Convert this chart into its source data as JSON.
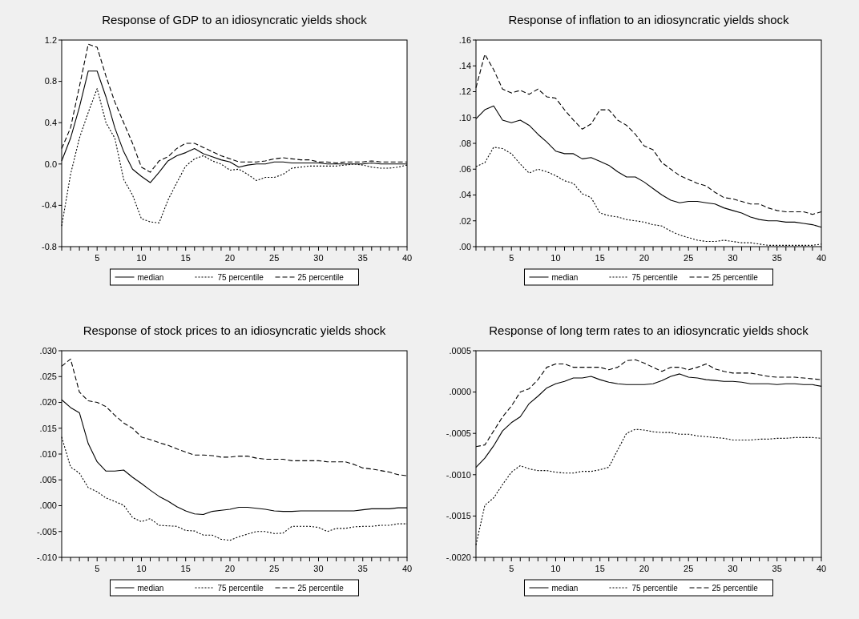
{
  "chart_data": [
    {
      "type": "line",
      "title": "Response of GDP to an idiosyncratic yields shock",
      "legend": "bottom",
      "xlim": [
        1,
        40
      ],
      "xticks": [
        {
          "value": 1,
          "label": null
        },
        {
          "value": 2,
          "label": null
        },
        {
          "value": 3,
          "label": null
        },
        {
          "value": 4,
          "label": null
        },
        5,
        {
          "value": 6,
          "label": null
        },
        {
          "value": 7,
          "label": null
        },
        {
          "value": 8,
          "label": null
        },
        {
          "value": 9,
          "label": null
        },
        10,
        {
          "value": 11,
          "label": null
        },
        {
          "value": 12,
          "label": null
        },
        {
          "value": 13,
          "label": null
        },
        {
          "value": 14,
          "label": null
        },
        15,
        {
          "value": 16,
          "label": null
        },
        {
          "value": 17,
          "label": null
        },
        {
          "value": 18,
          "label": null
        },
        {
          "value": 19,
          "label": null
        },
        20,
        {
          "value": 21,
          "label": null
        },
        {
          "value": 22,
          "label": null
        },
        {
          "value": 23,
          "label": null
        },
        {
          "value": 24,
          "label": null
        },
        25,
        {
          "value": 26,
          "label": null
        },
        {
          "value": 27,
          "label": null
        },
        {
          "value": 28,
          "label": null
        },
        {
          "value": 29,
          "label": null
        },
        30,
        {
          "value": 31,
          "label": null
        },
        {
          "value": 32,
          "label": null
        },
        {
          "value": 33,
          "label": null
        },
        {
          "value": 34,
          "label": null
        },
        35,
        {
          "value": 36,
          "label": null
        },
        {
          "value": 37,
          "label": null
        },
        {
          "value": 38,
          "label": null
        },
        {
          "value": 39,
          "label": null
        },
        40
      ],
      "ylim": [
        -0.8,
        1.2
      ],
      "yticks": [
        {
          "value": -0.8,
          "label": "-0.8"
        },
        {
          "value": -0.4,
          "label": "-0.4"
        },
        {
          "value": 0,
          "label": "0.0"
        },
        0.4,
        0.8,
        1.2
      ],
      "x": [
        1,
        2,
        3,
        4,
        5,
        6,
        7,
        8,
        9,
        10,
        11,
        12,
        13,
        14,
        15,
        16,
        17,
        18,
        19,
        20,
        21,
        22,
        23,
        24,
        25,
        26,
        27,
        28,
        29,
        30,
        31,
        32,
        33,
        34,
        35,
        36,
        37,
        38,
        39,
        40
      ],
      "series": [
        {
          "name": "median",
          "color": "#000000",
          "line_style": "solid",
          "values": [
            0.03,
            0.25,
            0.55,
            0.9,
            0.9,
            0.65,
            0.35,
            0.12,
            -0.05,
            -0.12,
            -0.18,
            -0.08,
            0.03,
            0.08,
            0.11,
            0.15,
            0.1,
            0.07,
            0.04,
            0.02,
            -0.03,
            -0.01,
            0,
            0,
            0.02,
            0.02,
            0.01,
            0.01,
            0.01,
            0.01,
            0,
            0,
            0,
            0,
            0,
            0.01,
            0,
            0,
            0,
            0
          ]
        },
        {
          "name": "75 percentile",
          "color": "#000000",
          "line_style": "dotted",
          "values": [
            -0.6,
            -0.1,
            0.25,
            0.5,
            0.73,
            0.4,
            0.25,
            -0.15,
            -0.3,
            -0.53,
            -0.56,
            -0.57,
            -0.35,
            -0.18,
            -0.02,
            0.05,
            0.08,
            0.03,
            0,
            -0.06,
            -0.05,
            -0.1,
            -0.16,
            -0.13,
            -0.13,
            -0.1,
            -0.04,
            -0.03,
            -0.02,
            -0.02,
            -0.02,
            -0.02,
            -0.01,
            0,
            -0.01,
            -0.03,
            -0.04,
            -0.04,
            -0.03,
            -0.01
          ]
        },
        {
          "name": "25 percentile",
          "color": "#000000",
          "line_style": "dashed",
          "values": [
            0.15,
            0.35,
            0.75,
            1.16,
            1.13,
            0.85,
            0.6,
            0.4,
            0.2,
            -0.03,
            -0.08,
            0.03,
            0.07,
            0.15,
            0.2,
            0.2,
            0.16,
            0.12,
            0.08,
            0.05,
            0.02,
            0.02,
            0.02,
            0.03,
            0.05,
            0.06,
            0.05,
            0.04,
            0.04,
            0.02,
            0.02,
            0.01,
            0.02,
            0.02,
            0.02,
            0.03,
            0.02,
            0.02,
            0.02,
            0.02
          ]
        }
      ]
    },
    {
      "type": "line",
      "title": "Response of  inflation to an idiosyncratic yields shock",
      "legend": "bottom",
      "xlim": [
        1,
        40
      ],
      "xticks": [
        {
          "value": 1,
          "label": null
        },
        {
          "value": 2,
          "label": null
        },
        {
          "value": 3,
          "label": null
        },
        {
          "value": 4,
          "label": null
        },
        5,
        {
          "value": 6,
          "label": null
        },
        {
          "value": 7,
          "label": null
        },
        {
          "value": 8,
          "label": null
        },
        {
          "value": 9,
          "label": null
        },
        10,
        {
          "value": 11,
          "label": null
        },
        {
          "value": 12,
          "label": null
        },
        {
          "value": 13,
          "label": null
        },
        {
          "value": 14,
          "label": null
        },
        15,
        {
          "value": 16,
          "label": null
        },
        {
          "value": 17,
          "label": null
        },
        {
          "value": 18,
          "label": null
        },
        {
          "value": 19,
          "label": null
        },
        20,
        {
          "value": 21,
          "label": null
        },
        {
          "value": 22,
          "label": null
        },
        {
          "value": 23,
          "label": null
        },
        {
          "value": 24,
          "label": null
        },
        25,
        {
          "value": 26,
          "label": null
        },
        {
          "value": 27,
          "label": null
        },
        {
          "value": 28,
          "label": null
        },
        {
          "value": 29,
          "label": null
        },
        30,
        {
          "value": 31,
          "label": null
        },
        {
          "value": 32,
          "label": null
        },
        {
          "value": 33,
          "label": null
        },
        {
          "value": 34,
          "label": null
        },
        35,
        {
          "value": 36,
          "label": null
        },
        {
          "value": 37,
          "label": null
        },
        {
          "value": 38,
          "label": null
        },
        {
          "value": 39,
          "label": null
        },
        40
      ],
      "ylim": [
        0,
        0.16
      ],
      "yticks": [
        {
          "value": 0,
          "label": ".00"
        },
        {
          "value": 0.02,
          "label": ".02"
        },
        {
          "value": 0.04,
          "label": ".04"
        },
        {
          "value": 0.06,
          "label": ".06"
        },
        {
          "value": 0.08,
          "label": ".08"
        },
        {
          "value": 0.1,
          "label": ".10"
        },
        {
          "value": 0.12,
          "label": ".12"
        },
        {
          "value": 0.14,
          "label": ".14"
        },
        {
          "value": 0.16,
          "label": ".16"
        }
      ],
      "x": [
        1,
        2,
        3,
        4,
        5,
        6,
        7,
        8,
        9,
        10,
        11,
        12,
        13,
        14,
        15,
        16,
        17,
        18,
        19,
        20,
        21,
        22,
        23,
        24,
        25,
        26,
        27,
        28,
        29,
        30,
        31,
        32,
        33,
        34,
        35,
        36,
        37,
        38,
        39,
        40
      ],
      "series": [
        {
          "name": "median",
          "color": "#000000",
          "line_style": "solid",
          "values": [
            0.099,
            0.106,
            0.109,
            0.098,
            0.096,
            0.098,
            0.094,
            0.087,
            0.081,
            0.074,
            0.072,
            0.072,
            0.068,
            0.069,
            0.066,
            0.063,
            0.058,
            0.054,
            0.054,
            0.05,
            0.045,
            0.04,
            0.036,
            0.034,
            0.035,
            0.035,
            0.034,
            0.033,
            0.03,
            0.028,
            0.026,
            0.023,
            0.021,
            0.02,
            0.02,
            0.019,
            0.019,
            0.018,
            0.017,
            0.015
          ]
        },
        {
          "name": "75 percentile",
          "color": "#000000",
          "line_style": "dotted",
          "values": [
            0.062,
            0.065,
            0.077,
            0.076,
            0.072,
            0.064,
            0.057,
            0.06,
            0.058,
            0.055,
            0.051,
            0.049,
            0.041,
            0.038,
            0.026,
            0.024,
            0.023,
            0.021,
            0.02,
            0.019,
            0.017,
            0.016,
            0.012,
            0.009,
            0.007,
            0.005,
            0.004,
            0.004,
            0.005,
            0.004,
            0.003,
            0.003,
            0.002,
            0.001,
            0.001,
            0.001,
            0.001,
            0.001,
            0.001,
            0.002
          ]
        },
        {
          "name": "25 percentile",
          "color": "#000000",
          "line_style": "dashed",
          "values": [
            0.123,
            0.149,
            0.137,
            0.122,
            0.119,
            0.121,
            0.118,
            0.122,
            0.116,
            0.115,
            0.106,
            0.098,
            0.091,
            0.095,
            0.106,
            0.106,
            0.098,
            0.094,
            0.087,
            0.078,
            0.075,
            0.065,
            0.06,
            0.055,
            0.052,
            0.049,
            0.047,
            0.042,
            0.038,
            0.037,
            0.035,
            0.033,
            0.033,
            0.03,
            0.028,
            0.027,
            0.027,
            0.027,
            0.025,
            0.027
          ]
        }
      ]
    },
    {
      "type": "line",
      "title": "Response of stock prices to an idiosyncratic yields shock",
      "legend": "bottom",
      "xlim": [
        1,
        40
      ],
      "xticks": [
        {
          "value": 1,
          "label": null
        },
        {
          "value": 2,
          "label": null
        },
        {
          "value": 3,
          "label": null
        },
        {
          "value": 4,
          "label": null
        },
        5,
        {
          "value": 6,
          "label": null
        },
        {
          "value": 7,
          "label": null
        },
        {
          "value": 8,
          "label": null
        },
        {
          "value": 9,
          "label": null
        },
        10,
        {
          "value": 11,
          "label": null
        },
        {
          "value": 12,
          "label": null
        },
        {
          "value": 13,
          "label": null
        },
        {
          "value": 14,
          "label": null
        },
        15,
        {
          "value": 16,
          "label": null
        },
        {
          "value": 17,
          "label": null
        },
        {
          "value": 18,
          "label": null
        },
        {
          "value": 19,
          "label": null
        },
        20,
        {
          "value": 21,
          "label": null
        },
        {
          "value": 22,
          "label": null
        },
        {
          "value": 23,
          "label": null
        },
        {
          "value": 24,
          "label": null
        },
        25,
        {
          "value": 26,
          "label": null
        },
        {
          "value": 27,
          "label": null
        },
        {
          "value": 28,
          "label": null
        },
        {
          "value": 29,
          "label": null
        },
        30,
        {
          "value": 31,
          "label": null
        },
        {
          "value": 32,
          "label": null
        },
        {
          "value": 33,
          "label": null
        },
        {
          "value": 34,
          "label": null
        },
        35,
        {
          "value": 36,
          "label": null
        },
        {
          "value": 37,
          "label": null
        },
        {
          "value": 38,
          "label": null
        },
        {
          "value": 39,
          "label": null
        },
        40
      ],
      "ylim": [
        -0.01,
        0.03
      ],
      "yticks": [
        {
          "value": -0.01,
          "label": "-.010"
        },
        {
          "value": -0.005,
          "label": "-.005"
        },
        {
          "value": 0,
          "label": ".000"
        },
        {
          "value": 0.005,
          "label": ".005"
        },
        {
          "value": 0.01,
          "label": ".010"
        },
        {
          "value": 0.015,
          "label": ".015"
        },
        {
          "value": 0.02,
          "label": ".020"
        },
        {
          "value": 0.025,
          "label": ".025"
        },
        {
          "value": 0.03,
          "label": ".030"
        }
      ],
      "x": [
        1,
        2,
        3,
        4,
        5,
        6,
        7,
        8,
        9,
        10,
        11,
        12,
        13,
        14,
        15,
        16,
        17,
        18,
        19,
        20,
        21,
        22,
        23,
        24,
        25,
        26,
        27,
        28,
        29,
        30,
        31,
        32,
        33,
        34,
        35,
        36,
        37,
        38,
        39,
        40
      ],
      "series": [
        {
          "name": "median",
          "color": "#000000",
          "line_style": "solid",
          "values": [
            0.0205,
            0.019,
            0.018,
            0.012,
            0.0085,
            0.0067,
            0.0067,
            0.0069,
            0.0055,
            0.0043,
            0.003,
            0.0018,
            0.0009,
            -0.0002,
            -0.001,
            -0.0016,
            -0.0017,
            -0.0011,
            -0.0009,
            -0.0007,
            -0.0003,
            -0.0003,
            -0.0005,
            -0.0007,
            -0.001,
            -0.0011,
            -0.0011,
            -0.001,
            -0.001,
            -0.001,
            -0.001,
            -0.001,
            -0.001,
            -0.001,
            -0.0008,
            -0.0006,
            -0.0006,
            -0.0006,
            -0.0004,
            -0.0004
          ]
        },
        {
          "name": "75 percentile",
          "color": "#000000",
          "line_style": "dotted",
          "values": [
            0.0133,
            0.0075,
            0.0063,
            0.0035,
            0.0027,
            0.0015,
            0.0008,
            0.0001,
            -0.0023,
            -0.0031,
            -0.0025,
            -0.0038,
            -0.0039,
            -0.004,
            -0.0048,
            -0.0049,
            -0.0057,
            -0.0057,
            -0.0065,
            -0.0067,
            -0.006,
            -0.0055,
            -0.005,
            -0.005,
            -0.0054,
            -0.0053,
            -0.004,
            -0.004,
            -0.004,
            -0.0042,
            -0.005,
            -0.0044,
            -0.0044,
            -0.0041,
            -0.004,
            -0.004,
            -0.0038,
            -0.0038,
            -0.0035,
            -0.0035
          ]
        },
        {
          "name": "25 percentile",
          "color": "#000000",
          "line_style": "dashed",
          "values": [
            0.027,
            0.0284,
            0.022,
            0.0203,
            0.02,
            0.0192,
            0.0175,
            0.016,
            0.015,
            0.0133,
            0.0128,
            0.0122,
            0.0117,
            0.011,
            0.0104,
            0.0098,
            0.0098,
            0.0097,
            0.0094,
            0.0094,
            0.0096,
            0.0096,
            0.0092,
            0.009,
            0.009,
            0.009,
            0.0087,
            0.0087,
            0.0087,
            0.0087,
            0.0085,
            0.0085,
            0.0085,
            0.008,
            0.0073,
            0.0071,
            0.0068,
            0.0065,
            0.006,
            0.0058
          ]
        }
      ]
    },
    {
      "type": "line",
      "title": "Response of long term rates to an idiosyncratic yields shock",
      "legend": "bottom",
      "xlim": [
        1,
        40
      ],
      "xticks": [
        {
          "value": 1,
          "label": null
        },
        {
          "value": 2,
          "label": null
        },
        {
          "value": 3,
          "label": null
        },
        {
          "value": 4,
          "label": null
        },
        5,
        {
          "value": 6,
          "label": null
        },
        {
          "value": 7,
          "label": null
        },
        {
          "value": 8,
          "label": null
        },
        {
          "value": 9,
          "label": null
        },
        10,
        {
          "value": 11,
          "label": null
        },
        {
          "value": 12,
          "label": null
        },
        {
          "value": 13,
          "label": null
        },
        {
          "value": 14,
          "label": null
        },
        15,
        {
          "value": 16,
          "label": null
        },
        {
          "value": 17,
          "label": null
        },
        {
          "value": 18,
          "label": null
        },
        {
          "value": 19,
          "label": null
        },
        20,
        {
          "value": 21,
          "label": null
        },
        {
          "value": 22,
          "label": null
        },
        {
          "value": 23,
          "label": null
        },
        {
          "value": 24,
          "label": null
        },
        25,
        {
          "value": 26,
          "label": null
        },
        {
          "value": 27,
          "label": null
        },
        {
          "value": 28,
          "label": null
        },
        {
          "value": 29,
          "label": null
        },
        30,
        {
          "value": 31,
          "label": null
        },
        {
          "value": 32,
          "label": null
        },
        {
          "value": 33,
          "label": null
        },
        {
          "value": 34,
          "label": null
        },
        35,
        {
          "value": 36,
          "label": null
        },
        {
          "value": 37,
          "label": null
        },
        {
          "value": 38,
          "label": null
        },
        {
          "value": 39,
          "label": null
        },
        40
      ],
      "ylim": [
        -0.002,
        0.0005
      ],
      "yticks": [
        {
          "value": -0.002,
          "label": "-.0020"
        },
        {
          "value": -0.0015,
          "label": "-.0015"
        },
        {
          "value": -0.001,
          "label": "-.0010"
        },
        {
          "value": -0.0005,
          "label": "-.0005"
        },
        {
          "value": 0,
          "label": ".0000"
        },
        {
          "value": 0.0005,
          "label": ".0005"
        }
      ],
      "x": [
        1,
        2,
        3,
        4,
        5,
        6,
        7,
        8,
        9,
        10,
        11,
        12,
        13,
        14,
        15,
        16,
        17,
        18,
        19,
        20,
        21,
        22,
        23,
        24,
        25,
        26,
        27,
        28,
        29,
        30,
        31,
        32,
        33,
        34,
        35,
        36,
        37,
        38,
        39,
        40
      ],
      "series": [
        {
          "name": "median",
          "color": "#000000",
          "line_style": "solid",
          "values": [
            -0.00091,
            -0.0008,
            -0.00065,
            -0.00047,
            -0.00037,
            -0.0003,
            -0.00014,
            -5e-05,
            5e-05,
            0.0001,
            0.00013,
            0.00017,
            0.00017,
            0.00019,
            0.00015,
            0.00012,
            0.0001,
            9e-05,
            9e-05,
            9e-05,
            0.0001,
            0.00014,
            0.00019,
            0.00022,
            0.00018,
            0.00017,
            0.00015,
            0.00014,
            0.00013,
            0.00013,
            0.00012,
            0.0001,
            0.0001,
            0.0001,
            9e-05,
            0.0001,
            0.0001,
            9e-05,
            9e-05,
            7e-05
          ]
        },
        {
          "name": "75 percentile",
          "color": "#000000",
          "line_style": "dotted",
          "values": [
            -0.00185,
            -0.00137,
            -0.00128,
            -0.00112,
            -0.00097,
            -0.00089,
            -0.00093,
            -0.00095,
            -0.00095,
            -0.00097,
            -0.00098,
            -0.00098,
            -0.00096,
            -0.00096,
            -0.00094,
            -0.00091,
            -0.0007,
            -0.0005,
            -0.00045,
            -0.00046,
            -0.00048,
            -0.00049,
            -0.00049,
            -0.00051,
            -0.00051,
            -0.00053,
            -0.00054,
            -0.00055,
            -0.00056,
            -0.00058,
            -0.00058,
            -0.00058,
            -0.00057,
            -0.00057,
            -0.00056,
            -0.00056,
            -0.00055,
            -0.00055,
            -0.00055,
            -0.00056
          ]
        },
        {
          "name": "25 percentile",
          "color": "#000000",
          "line_style": "dashed",
          "values": [
            -0.00066,
            -0.00064,
            -0.00047,
            -0.0003,
            -0.00017,
            0,
            4e-05,
            0.00015,
            0.0003,
            0.00034,
            0.00034,
            0.0003,
            0.0003,
            0.0003,
            0.0003,
            0.00027,
            0.0003,
            0.00038,
            0.00039,
            0.00035,
            0.0003,
            0.00025,
            0.0003,
            0.0003,
            0.00027,
            0.0003,
            0.00034,
            0.00028,
            0.00025,
            0.00023,
            0.00023,
            0.00023,
            0.00021,
            0.00019,
            0.00018,
            0.00018,
            0.00018,
            0.00017,
            0.00016,
            0.00015
          ]
        }
      ]
    }
  ]
}
